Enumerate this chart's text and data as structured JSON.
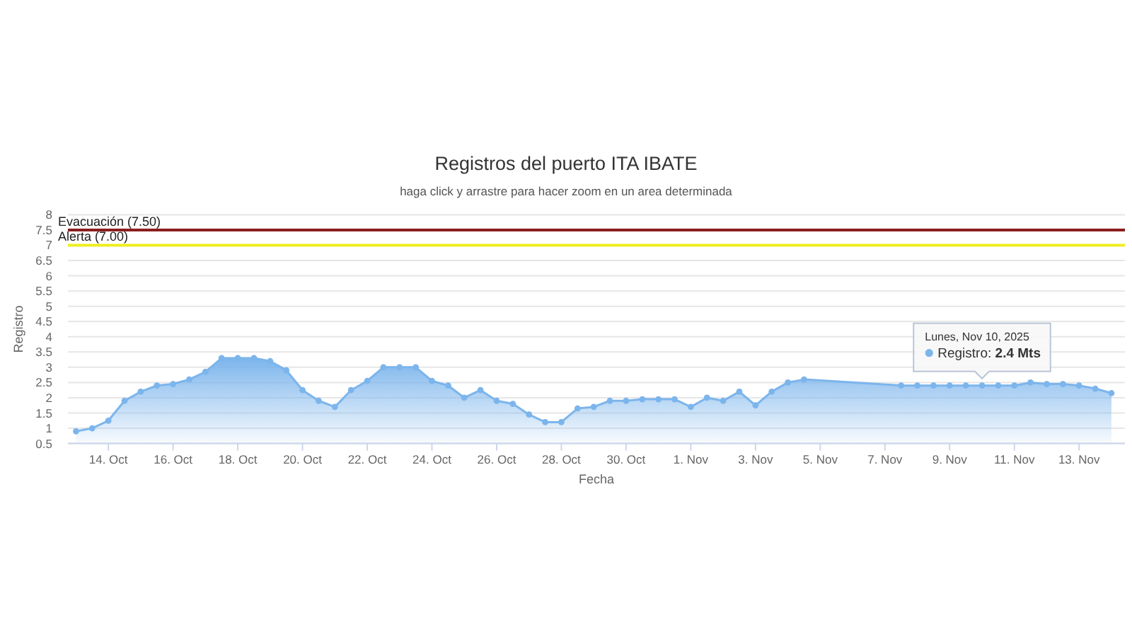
{
  "chart_data": {
    "type": "area",
    "title": "Registros del puerto ITA IBATE",
    "subtitle": "haga click y arrastre para hacer zoom en un area determinada",
    "xlabel": "Fecha",
    "ylabel": "Registro",
    "x": [
      "2025-10-13T00:00",
      "2025-10-13T12:00",
      "2025-10-14T00:00",
      "2025-10-14T12:00",
      "2025-10-15T00:00",
      "2025-10-15T12:00",
      "2025-10-16T00:00",
      "2025-10-16T12:00",
      "2025-10-17T00:00",
      "2025-10-17T12:00",
      "2025-10-18T00:00",
      "2025-10-18T12:00",
      "2025-10-19T00:00",
      "2025-10-19T12:00",
      "2025-10-20T00:00",
      "2025-10-20T12:00",
      "2025-10-21T00:00",
      "2025-10-21T12:00",
      "2025-10-22T00:00",
      "2025-10-22T12:00",
      "2025-10-23T00:00",
      "2025-10-23T12:00",
      "2025-10-24T00:00",
      "2025-10-24T12:00",
      "2025-10-25T00:00",
      "2025-10-25T12:00",
      "2025-10-26T00:00",
      "2025-10-26T12:00",
      "2025-10-27T00:00",
      "2025-10-27T12:00",
      "2025-10-28T00:00",
      "2025-10-28T12:00",
      "2025-10-29T00:00",
      "2025-10-29T12:00",
      "2025-10-30T00:00",
      "2025-10-30T12:00",
      "2025-10-31T00:00",
      "2025-10-31T12:00",
      "2025-11-01T00:00",
      "2025-11-01T12:00",
      "2025-11-02T00:00",
      "2025-11-02T12:00",
      "2025-11-03T00:00",
      "2025-11-03T12:00",
      "2025-11-04T00:00",
      "2025-11-04T12:00",
      "2025-11-07T12:00",
      "2025-11-08T00:00",
      "2025-11-08T12:00",
      "2025-11-09T00:00",
      "2025-11-09T12:00",
      "2025-11-10T00:00",
      "2025-11-10T12:00",
      "2025-11-11T00:00",
      "2025-11-11T12:00",
      "2025-11-12T00:00",
      "2025-11-12T12:00",
      "2025-11-13T00:00",
      "2025-11-13T12:00",
      "2025-11-14T00:00"
    ],
    "values": [
      0.9,
      1.0,
      1.25,
      1.9,
      2.2,
      2.4,
      2.45,
      2.6,
      2.85,
      3.3,
      3.3,
      3.3,
      3.2,
      2.9,
      2.25,
      1.9,
      1.7,
      2.25,
      2.55,
      3.0,
      3.0,
      3.0,
      2.55,
      2.4,
      2.0,
      2.25,
      1.9,
      1.8,
      1.45,
      1.2,
      1.2,
      1.65,
      1.7,
      1.9,
      1.9,
      1.95,
      1.95,
      1.95,
      1.7,
      2.0,
      1.9,
      2.2,
      1.75,
      2.2,
      2.5,
      2.6,
      2.4,
      2.4,
      2.4,
      2.4,
      2.4,
      2.4,
      2.4,
      2.4,
      2.5,
      2.45,
      2.45,
      2.4,
      2.3,
      2.15
    ],
    "color": "#7cb5ec",
    "marker": "circle",
    "grid": "y",
    "xlim": [
      "2025-10-12T18:00",
      "2025-11-14T10:00"
    ],
    "ylim": [
      0.5,
      8
    ],
    "xticks": [
      {
        "value": "2025-10-14",
        "label": "14. Oct"
      },
      {
        "value": "2025-10-16",
        "label": "16. Oct"
      },
      {
        "value": "2025-10-18",
        "label": "18. Oct"
      },
      {
        "value": "2025-10-20",
        "label": "20. Oct"
      },
      {
        "value": "2025-10-22",
        "label": "22. Oct"
      },
      {
        "value": "2025-10-24",
        "label": "24. Oct"
      },
      {
        "value": "2025-10-26",
        "label": "26. Oct"
      },
      {
        "value": "2025-10-28",
        "label": "28. Oct"
      },
      {
        "value": "2025-10-30",
        "label": "30. Oct"
      },
      {
        "value": "2025-11-01",
        "label": "1. Nov"
      },
      {
        "value": "2025-11-03",
        "label": "3. Nov"
      },
      {
        "value": "2025-11-05",
        "label": "5. Nov"
      },
      {
        "value": "2025-11-07",
        "label": "7. Nov"
      },
      {
        "value": "2025-11-09",
        "label": "9. Nov"
      },
      {
        "value": "2025-11-11",
        "label": "11. Nov"
      },
      {
        "value": "2025-11-13",
        "label": "13. Nov"
      }
    ],
    "yticks": [
      0.5,
      1,
      1.5,
      2,
      2.5,
      3,
      3.5,
      4,
      4.5,
      5,
      5.5,
      6,
      6.5,
      7,
      7.5,
      8
    ],
    "ref_lines": [
      {
        "axis": "y",
        "value": 7.5,
        "label": "Evacuación (7.50)",
        "color": "#8b1e1e"
      },
      {
        "axis": "y",
        "value": 7,
        "label": "Alerta (7.00)",
        "color": "#eeee22"
      }
    ],
    "annotations": [
      {
        "text": "Lunes, Nov 10, 2025\nRegistro: 2.4 Mts",
        "x": "2025-11-10",
        "y": 2.4
      }
    ]
  }
}
